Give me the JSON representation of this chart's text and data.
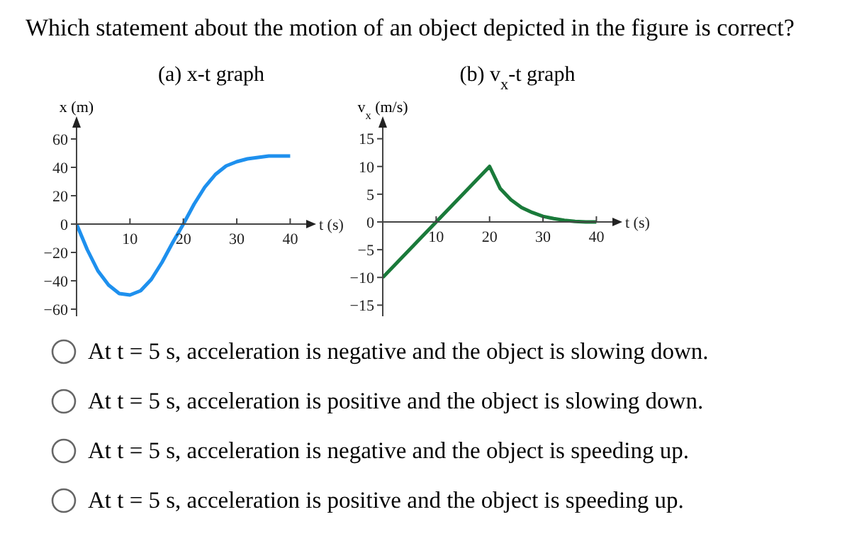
{
  "chart_data": [
    {
      "type": "line",
      "title": "(a) x-t graph",
      "xlabel": "t (s)",
      "ylabel": "x (m)",
      "annotations": [
        "Which statement about the motion of an object depicted in the figure is correct?",
        "At t = 5 s, acceleration is negative and the object is slowing down.",
        "At t = 5 s, acceleration is positive and the object is slowing down.",
        "At t = 5 s, acceleration is negative and the object is speeding up.",
        "At t = 5 s, acceleration is positive and the object is speeding up."
      ],
      "x": [
        0,
        2,
        4,
        6,
        8,
        10,
        12,
        14,
        16,
        18,
        20,
        22,
        24,
        26,
        28,
        30,
        32,
        34,
        36,
        38,
        40
      ],
      "series": [
        {
          "color": "#1e90ee",
          "values": [
            0,
            -18,
            -33,
            -43,
            -49,
            -50,
            -47,
            -39,
            -27,
            -13,
            0,
            14,
            26,
            35,
            41,
            44,
            46,
            47,
            48,
            48,
            48
          ]
        }
      ],
      "xlim": [
        0,
        43
      ],
      "ylim": [
        -65,
        68
      ],
      "xticks": [
        10,
        20,
        30,
        40
      ],
      "yticks": [
        -60,
        -40,
        -20,
        0,
        20,
        40,
        60
      ],
      "grid": false,
      "legend": false,
      "marker": "none",
      "line_style": "solid"
    },
    {
      "type": "line",
      "title": "(b) v$_{x}$-t graph",
      "xlabel": "t (s)",
      "ylabel": "v$_{x}$ (m/s)",
      "x": [
        0,
        10,
        20,
        22,
        24,
        26,
        28,
        30,
        32,
        34,
        36,
        38,
        40
      ],
      "series": [
        {
          "color": "#1a7a3a",
          "values": [
            -10,
            0,
            10,
            6,
            4,
            2.6,
            1.7,
            1,
            0.6,
            0.3,
            0.1,
            0,
            0
          ]
        }
      ],
      "xlim": [
        0,
        43
      ],
      "ylim": [
        -17,
        17
      ],
      "xticks": [
        10,
        20,
        30,
        40
      ],
      "yticks": [
        -15,
        -10,
        -5,
        0,
        5,
        10,
        15
      ],
      "grid": false,
      "legend": false,
      "marker": "none",
      "line_style": "solid"
    }
  ]
}
